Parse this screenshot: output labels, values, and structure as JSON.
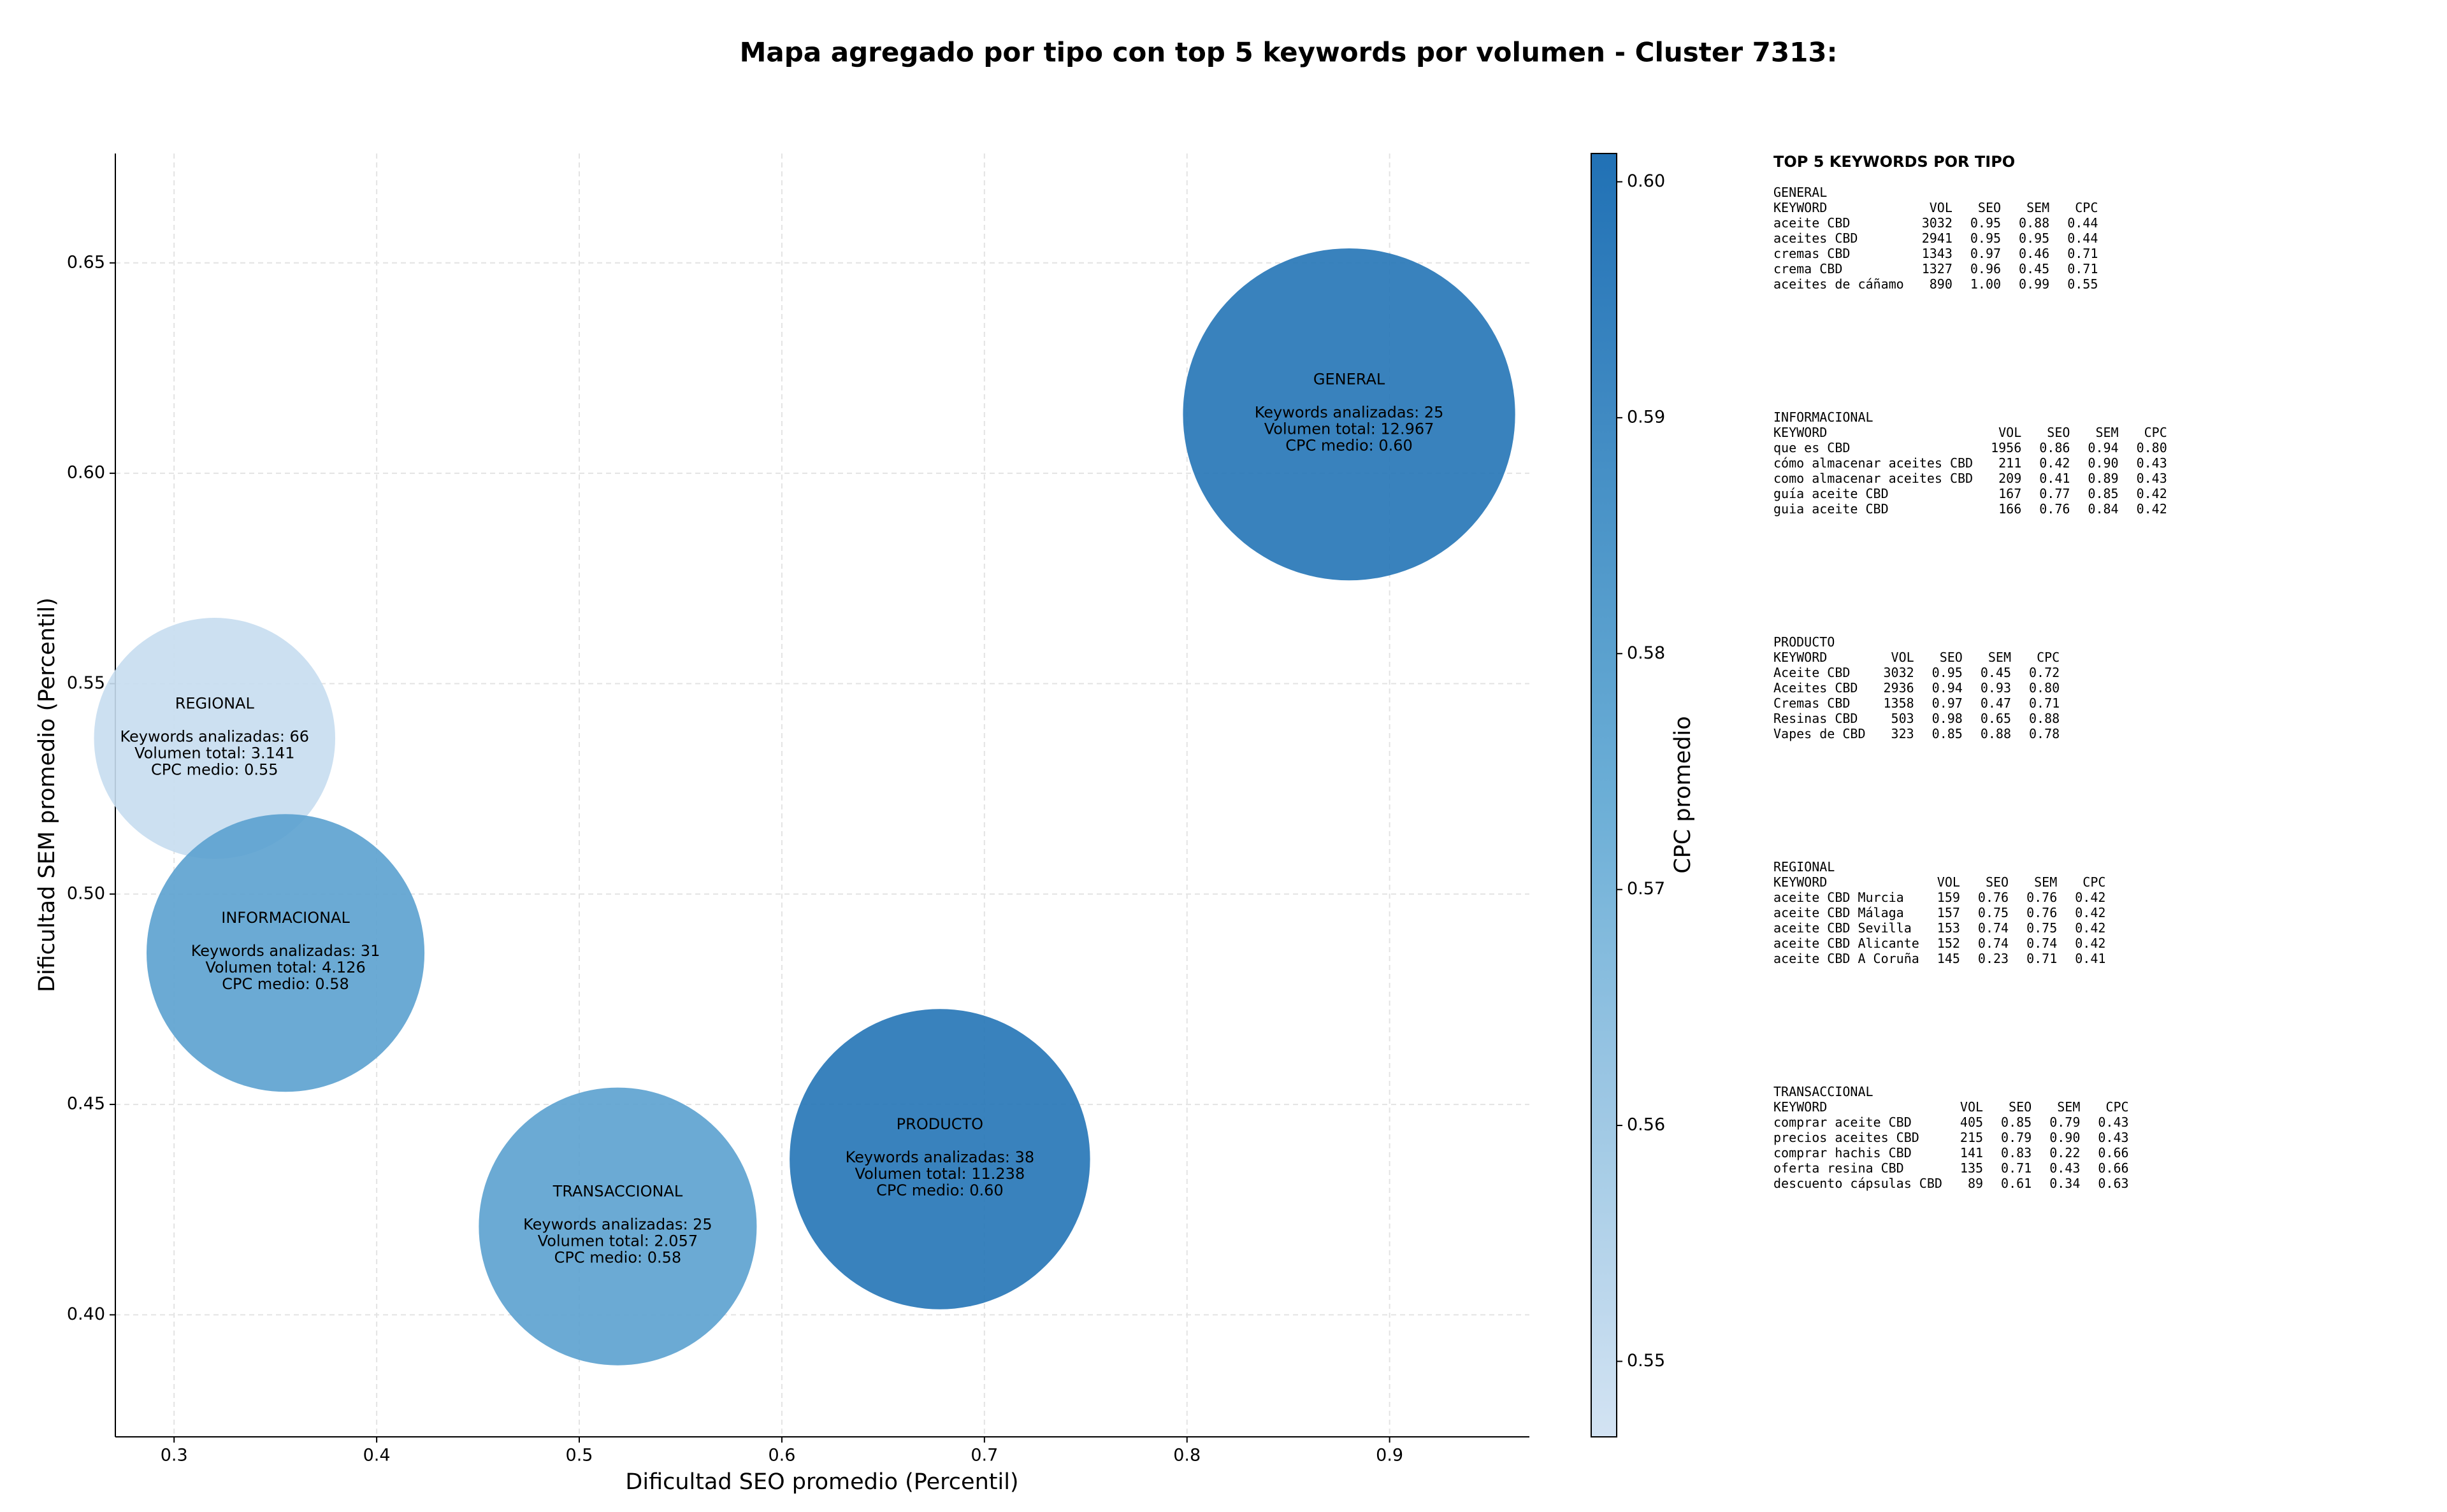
{
  "chart_data": {
    "type": "bubble",
    "title": "Mapa agregado por tipo con top 5 keywords por volumen - Cluster 7313:",
    "xlabel": "Dificultad SEO promedio (Percentil)",
    "ylabel": "Dificultad SEM promedio (Percentil)",
    "colorbar_label": "CPC promedio",
    "categories": [
      "GENERAL",
      "REGIONAL",
      "INFORMACIONAL",
      "TRANSACCIONAL",
      "PRODUCTO"
    ],
    "x": [
      0.88,
      0.32,
      0.355,
      0.519,
      0.678
    ],
    "values": [
      0.614,
      0.537,
      0.486,
      0.421,
      0.437
    ],
    "sizes": [
      11000,
      5800,
      7700,
      7700,
      9000
    ],
    "cpc": [
      0.6,
      0.55,
      0.58,
      0.58,
      0.6
    ],
    "annotations": [
      [
        "Keywords analizadas: 25",
        "Volumen total: 12.967",
        "CPC medio: 0.60"
      ],
      [
        "Keywords analizadas: 66",
        "Volumen total: 3.141",
        "CPC medio: 0.55"
      ],
      [
        "Keywords analizadas: 31",
        "Volumen total: 4.126",
        "CPC medio: 0.58"
      ],
      [
        "Keywords analizadas: 25",
        "Volumen total: 2.057",
        "CPC medio: 0.58"
      ],
      [
        "Keywords analizadas: 38",
        "Volumen total: 11.238",
        "CPC medio: 0.60"
      ]
    ],
    "xlim": [
      0.271,
      0.969
    ],
    "xticks": [
      0.3,
      0.4,
      0.5,
      0.6,
      0.7,
      0.8,
      0.9
    ],
    "ylim": [
      0.371,
      0.676
    ],
    "yticks": [
      {
        "value": 0.4,
        "label": "0.40"
      },
      0.45,
      {
        "value": 0.5,
        "label": "0.50"
      },
      0.55,
      {
        "value": 0.6,
        "label": "0.60"
      },
      0.65
    ],
    "clim": [
      0.5468,
      0.6012
    ],
    "cticks": [
      0.55,
      0.56,
      0.57,
      0.58,
      0.59,
      {
        "value": 0.6,
        "label": "0.60"
      }
    ],
    "colormap": [
      "#d3e3f3",
      "#6baed6",
      "#2171b5"
    ],
    "alpha": 0.9,
    "grid": true
  },
  "side_panel": {
    "title": "TOP 5 KEYWORDS POR TIPO",
    "header": [
      "KEYWORD",
      "VOL",
      "SEO",
      "SEM",
      "CPC"
    ],
    "groups": [
      {
        "name": "GENERAL",
        "rows": [
          [
            "aceite CBD",
            "3032",
            "0.95",
            "0.88",
            "0.44"
          ],
          [
            "aceites CBD",
            "2941",
            "0.95",
            "0.95",
            "0.44"
          ],
          [
            "cremas CBD",
            "1343",
            "0.97",
            "0.46",
            "0.71"
          ],
          [
            "crema CBD",
            "1327",
            "0.96",
            "0.45",
            "0.71"
          ],
          [
            "aceites de cáñamo",
            "890",
            "1.00",
            "0.99",
            "0.55"
          ]
        ]
      },
      {
        "name": "INFORMACIONAL",
        "rows": [
          [
            "que es CBD",
            "1956",
            "0.86",
            "0.94",
            "0.80"
          ],
          [
            "cómo almacenar aceites CBD",
            "211",
            "0.42",
            "0.90",
            "0.43"
          ],
          [
            "como almacenar aceites CBD",
            "209",
            "0.41",
            "0.89",
            "0.43"
          ],
          [
            "guía aceite CBD",
            "167",
            "0.77",
            "0.85",
            "0.42"
          ],
          [
            "guia aceite CBD",
            "166",
            "0.76",
            "0.84",
            "0.42"
          ]
        ]
      },
      {
        "name": "PRODUCTO",
        "rows": [
          [
            "Aceite CBD",
            "3032",
            "0.95",
            "0.45",
            "0.72"
          ],
          [
            "Aceites CBD",
            "2936",
            "0.94",
            "0.93",
            "0.80"
          ],
          [
            "Cremas CBD",
            "1358",
            "0.97",
            "0.47",
            "0.71"
          ],
          [
            "Resinas CBD",
            "503",
            "0.98",
            "0.65",
            "0.88"
          ],
          [
            "Vapes de CBD",
            "323",
            "0.85",
            "0.88",
            "0.78"
          ]
        ]
      },
      {
        "name": "REGIONAL",
        "rows": [
          [
            "aceite CBD Murcia",
            "159",
            "0.76",
            "0.76",
            "0.42"
          ],
          [
            "aceite CBD Málaga",
            "157",
            "0.75",
            "0.76",
            "0.42"
          ],
          [
            "aceite CBD Sevilla",
            "153",
            "0.74",
            "0.75",
            "0.42"
          ],
          [
            "aceite CBD Alicante",
            "152",
            "0.74",
            "0.74",
            "0.42"
          ],
          [
            "aceite CBD A Coruña",
            "145",
            "0.23",
            "0.71",
            "0.41"
          ]
        ]
      },
      {
        "name": "TRANSACCIONAL",
        "rows": [
          [
            "comprar aceite CBD",
            "405",
            "0.85",
            "0.79",
            "0.43"
          ],
          [
            "precios aceites CBD",
            "215",
            "0.79",
            "0.90",
            "0.43"
          ],
          [
            "comprar hachis CBD",
            "141",
            "0.83",
            "0.22",
            "0.66"
          ],
          [
            "oferta resina CBD",
            "135",
            "0.71",
            "0.43",
            "0.66"
          ],
          [
            "descuento cápsulas CBD",
            "89",
            "0.61",
            "0.34",
            "0.63"
          ]
        ]
      }
    ]
  }
}
